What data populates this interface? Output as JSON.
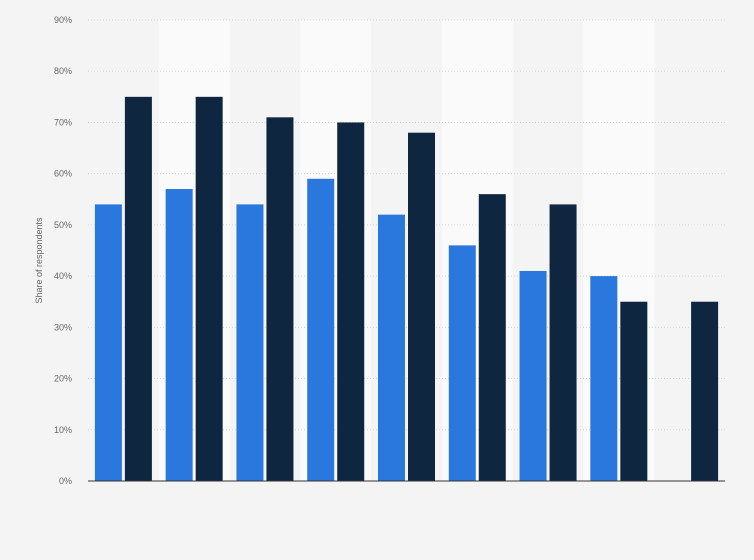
{
  "chart_data": {
    "type": "bar",
    "title": "",
    "xlabel": "",
    "ylabel": "Share of respondents",
    "ylim": [
      0,
      90
    ],
    "y_ticks": [
      0,
      10,
      20,
      30,
      40,
      50,
      60,
      70,
      80,
      90
    ],
    "y_tick_labels": [
      "0%",
      "10%",
      "20%",
      "30%",
      "40%",
      "50%",
      "60%",
      "70%",
      "80%",
      "90%"
    ],
    "categories": [
      "",
      "",
      "",
      "",
      "",
      "",
      "",
      "",
      ""
    ],
    "series": [
      {
        "color": "#2a77dd",
        "values": [
          54,
          57,
          54,
          59,
          52,
          46,
          41,
          40,
          null
        ]
      },
      {
        "color": "#0f2640",
        "values": [
          75,
          75,
          71,
          70,
          68,
          56,
          54,
          35,
          35
        ]
      }
    ],
    "grid": true,
    "alternating_band_color": "#fafafa",
    "legend": "none"
  }
}
